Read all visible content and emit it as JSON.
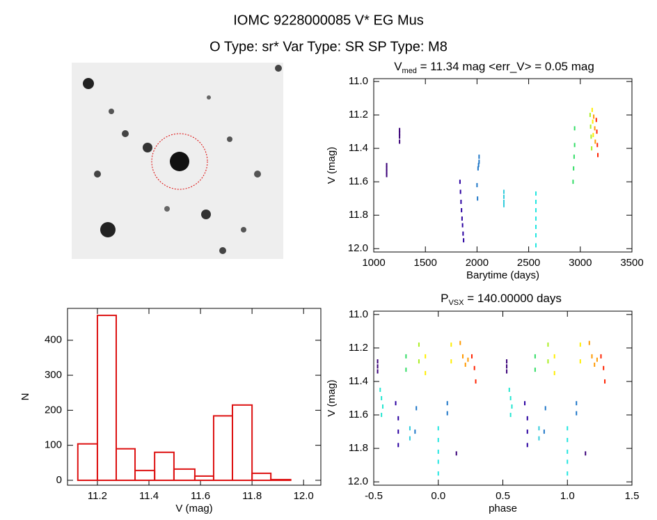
{
  "title": "IOMC 9228000085   V* EG Mus",
  "subtitle": "O Type: sr*  Var Type: SR  SP Type: M8",
  "chart_data": [
    {
      "type": "scatter",
      "title": {
        "main": "V",
        "sub": "med",
        "rest": " = 11.34 mag <err_V> = 0.05 mag"
      },
      "x_label": "Barytime (days)",
      "y_label": "V (mag)",
      "xlim": [
        1000,
        3500
      ],
      "xticks": [
        1000,
        1500,
        2000,
        2500,
        3000,
        3500
      ],
      "ylim": [
        12.02,
        10.983
      ],
      "yticks": [
        {
          "value": 11,
          "label": "11.0"
        },
        11.2,
        11.4,
        11.6,
        11.8,
        {
          "value": 12,
          "label": "12.0"
        }
      ],
      "series": [
        {
          "color": "#3a0078",
          "x": [
            1125,
            1125,
            1125,
            1125
          ],
          "values": [
            11.5,
            11.52,
            11.54,
            11.56
          ]
        },
        {
          "color": "#3a0078",
          "x": [
            1250,
            1250,
            1250,
            1250
          ],
          "values": [
            11.29,
            11.31,
            11.33,
            11.36
          ]
        },
        {
          "color": "#2a00a0",
          "x": [
            1835,
            1840,
            1845,
            1850,
            1855,
            1860,
            1865,
            1870
          ],
          "values": [
            11.6,
            11.66,
            11.72,
            11.77,
            11.82,
            11.86,
            11.91,
            11.95
          ]
        },
        {
          "color": "#1f77c8",
          "x": [
            2000,
            2005,
            2010,
            2015,
            2020,
            2020
          ],
          "values": [
            11.62,
            11.7,
            11.52,
            11.5,
            11.45,
            11.48
          ]
        },
        {
          "color": "#33ccdd",
          "x": [
            2260,
            2260,
            2260,
            2260
          ],
          "values": [
            11.66,
            11.69,
            11.72,
            11.74
          ]
        },
        {
          "color": "#22e6e0",
          "x": [
            2570,
            2570,
            2570,
            2570,
            2570,
            2570,
            2570
          ],
          "values": [
            11.67,
            11.72,
            11.77,
            11.82,
            11.87,
            11.92,
            11.98
          ]
        },
        {
          "color": "#33dd66",
          "x": [
            2930,
            2935,
            2940,
            2945,
            2945
          ],
          "values": [
            11.6,
            11.52,
            11.45,
            11.38,
            11.28
          ]
        },
        {
          "color": "#aaee22",
          "x": [
            3095,
            3100,
            3105,
            3110
          ],
          "values": [
            11.2,
            11.27,
            11.33,
            11.4
          ]
        },
        {
          "color": "#ffee00",
          "x": [
            3115,
            3120,
            3125
          ],
          "values": [
            11.17,
            11.24,
            11.32
          ]
        },
        {
          "color": "#ff9900",
          "x": [
            3130,
            3140,
            3145
          ],
          "values": [
            11.21,
            11.28,
            11.36
          ]
        },
        {
          "color": "#ff2200",
          "x": [
            3155,
            3160,
            3165,
            3170
          ],
          "values": [
            11.23,
            11.3,
            11.38,
            11.44
          ]
        }
      ]
    },
    {
      "type": "histogram",
      "x_label": "V (mag)",
      "y_label": "N",
      "color": "#dd1111",
      "xlim": [
        11.084,
        12.067
      ],
      "xticks": [
        11.2,
        11.4,
        11.6,
        11.8,
        {
          "value": 12,
          "label": "12.0"
        }
      ],
      "ylim": [
        -14,
        491
      ],
      "yticks": [
        0,
        100,
        200,
        300,
        400
      ],
      "bins": [
        11.124,
        11.2,
        11.273,
        11.346,
        11.422,
        11.497,
        11.578,
        11.651,
        11.724,
        11.8,
        11.873,
        11.95
      ],
      "values": [
        104,
        471,
        90,
        28,
        80,
        32,
        12,
        184,
        215,
        20,
        2
      ]
    },
    {
      "type": "scatter",
      "title": {
        "main": "P",
        "sub": "VSX",
        "rest": " = 140.00000 days"
      },
      "x_label": "phase",
      "y_label": "V (mag)",
      "xlim": [
        -0.5,
        1.5
      ],
      "xticks": [
        -0.5,
        {
          "value": 0,
          "label": "0.0"
        },
        0.5,
        {
          "value": 1,
          "label": "1.0"
        },
        1.5
      ],
      "ylim": [
        12.02,
        10.98
      ],
      "yticks": [
        {
          "value": 11,
          "label": "11.0"
        },
        11.2,
        11.4,
        11.6,
        11.8,
        {
          "value": 12,
          "label": "12.0"
        }
      ],
      "series": [
        {
          "color": "#3a0078",
          "x": [
            -0.47,
            -0.47,
            -0.47,
            0.53,
            0.53,
            0.53
          ],
          "values": [
            11.28,
            11.31,
            11.34,
            11.28,
            11.31,
            11.34
          ]
        },
        {
          "color": "#22e6d0",
          "x": [
            -0.45,
            -0.44,
            -0.43,
            -0.44,
            0.55,
            0.56,
            0.57,
            0.56
          ],
          "values": [
            11.45,
            11.5,
            11.55,
            11.6,
            11.45,
            11.5,
            11.55,
            11.6
          ]
        },
        {
          "color": "#2a00a0",
          "x": [
            -0.33,
            -0.31,
            -0.31,
            -0.31,
            0.67,
            0.69,
            0.69,
            0.69
          ],
          "values": [
            11.53,
            11.62,
            11.7,
            11.78,
            11.53,
            11.62,
            11.7,
            11.78
          ]
        },
        {
          "color": "#33dd66",
          "x": [
            -0.25,
            -0.25,
            0.75,
            0.75
          ],
          "values": [
            11.25,
            11.33,
            11.25,
            11.33
          ]
        },
        {
          "color": "#33ccdd",
          "x": [
            -0.22,
            -0.22,
            0.78,
            0.78
          ],
          "values": [
            11.68,
            11.74,
            11.68,
            11.74
          ]
        },
        {
          "color": "#1f77c8",
          "x": [
            -0.18,
            -0.17,
            0.82,
            0.83,
            0.07,
            0.07,
            1.07,
            1.07
          ],
          "values": [
            11.7,
            11.56,
            11.7,
            11.56,
            11.53,
            11.59,
            11.53,
            11.59
          ]
        },
        {
          "color": "#aaee22",
          "x": [
            -0.15,
            -0.15,
            0.85,
            0.85
          ],
          "values": [
            11.18,
            11.28,
            11.18,
            11.28
          ]
        },
        {
          "color": "#ffee00",
          "x": [
            -0.1,
            -0.1,
            0.9,
            0.9,
            0.1,
            0.1,
            1.1,
            1.1
          ],
          "values": [
            11.25,
            11.35,
            11.25,
            11.35,
            11.18,
            11.28,
            11.18,
            11.28
          ]
        },
        {
          "color": "#22e6e0",
          "x": [
            0,
            0,
            0,
            0,
            0,
            1,
            1,
            1,
            1,
            1
          ],
          "values": [
            11.68,
            11.75,
            11.82,
            11.88,
            11.95,
            11.68,
            11.75,
            11.82,
            11.88,
            11.95
          ]
        },
        {
          "color": "#3a0078",
          "x": [
            0.14,
            1.14
          ],
          "values": [
            11.83,
            11.83
          ]
        },
        {
          "color": "#ff9900",
          "x": [
            0.17,
            0.19,
            0.21,
            0.23,
            1.17,
            1.19,
            1.21,
            1.23
          ],
          "values": [
            11.17,
            11.25,
            11.3,
            11.27,
            11.17,
            11.25,
            11.3,
            11.27
          ]
        },
        {
          "color": "#ff2200",
          "x": [
            0.26,
            0.28,
            0.29,
            1.26,
            1.28,
            1.29
          ],
          "values": [
            11.25,
            11.32,
            11.4,
            11.25,
            11.32,
            11.4
          ]
        }
      ]
    }
  ]
}
